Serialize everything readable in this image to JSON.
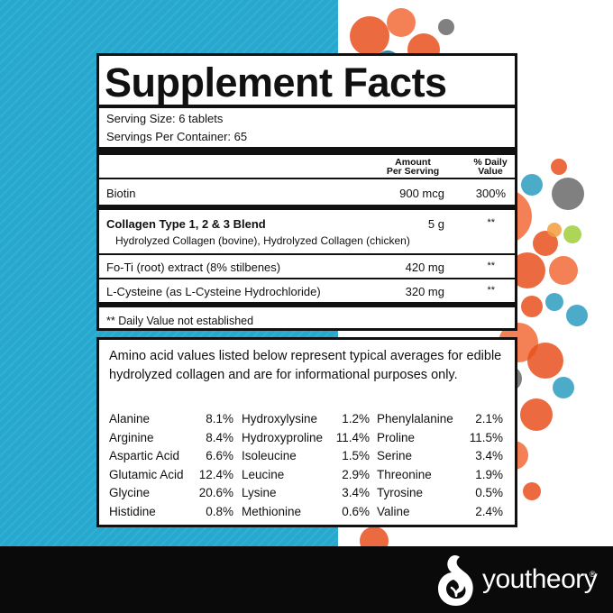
{
  "facts": {
    "title": "Supplement Facts",
    "serving_size": "Serving Size: 6 tablets",
    "servings_per_container": "Servings Per Container: 65",
    "col_amount_1": "Amount",
    "col_amount_2": "Per Serving",
    "col_dv_1": "% Daily",
    "col_dv_2": "Value",
    "rows": [
      {
        "name": "Biotin",
        "amount": "900 mcg",
        "dv": "300%"
      },
      {
        "name": "Collagen Type 1, 2 & 3 Blend",
        "sub": "Hydrolyzed Collagen (bovine), Hydrolyzed Collagen (chicken)",
        "amount": "5 g",
        "dv": "**"
      },
      {
        "name": "Fo-Ti (root) extract (8% stilbenes)",
        "amount": "420 mg",
        "dv": "**"
      },
      {
        "name": "L-Cysteine (as L-Cysteine Hydrochloride)",
        "amount": "320 mg",
        "dv": "**"
      }
    ],
    "footnote": "** Daily Value not established"
  },
  "amino": {
    "intro": "Amino acid values listed below represent typical averages for edible hydrolyzed collagen and are for informational purposes only.",
    "columns": [
      [
        {
          "name": "Alanine",
          "value": "8.1%"
        },
        {
          "name": "Arginine",
          "value": "8.4%"
        },
        {
          "name": "Aspartic Acid",
          "value": "6.6%"
        },
        {
          "name": "Glutamic Acid",
          "value": "12.4%"
        },
        {
          "name": "Glycine",
          "value": "20.6%"
        },
        {
          "name": "Histidine",
          "value": "0.8%"
        }
      ],
      [
        {
          "name": "Hydroxylysine",
          "value": "1.2%"
        },
        {
          "name": "Hydroxyproline",
          "value": "11.4%"
        },
        {
          "name": "Isoleucine",
          "value": "1.5%"
        },
        {
          "name": "Leucine",
          "value": "2.9%"
        },
        {
          "name": "Lysine",
          "value": "3.4%"
        },
        {
          "name": "Methionine",
          "value": "0.6%"
        }
      ],
      [
        {
          "name": "Phenylalanine",
          "value": "2.1%"
        },
        {
          "name": "Proline",
          "value": "11.5%"
        },
        {
          "name": "Serine",
          "value": "3.4%"
        },
        {
          "name": "Threonine",
          "value": "1.9%"
        },
        {
          "name": "Tyrosine",
          "value": "0.5%"
        },
        {
          "name": "Valine",
          "value": "2.4%"
        }
      ]
    ]
  },
  "brand": {
    "name": "youtheory",
    "mark": "®"
  },
  "colors": {
    "accent_blue": "#27a9cf",
    "footer_black": "#0b0a0a",
    "dot_palette": [
      "#e8501e",
      "#f26b38",
      "#2b9cc0",
      "#1c6f8c",
      "#9fcf3c",
      "#6a6a6a",
      "#f39c3d"
    ]
  },
  "icons": [
    "youtheory-logo-icon"
  ]
}
